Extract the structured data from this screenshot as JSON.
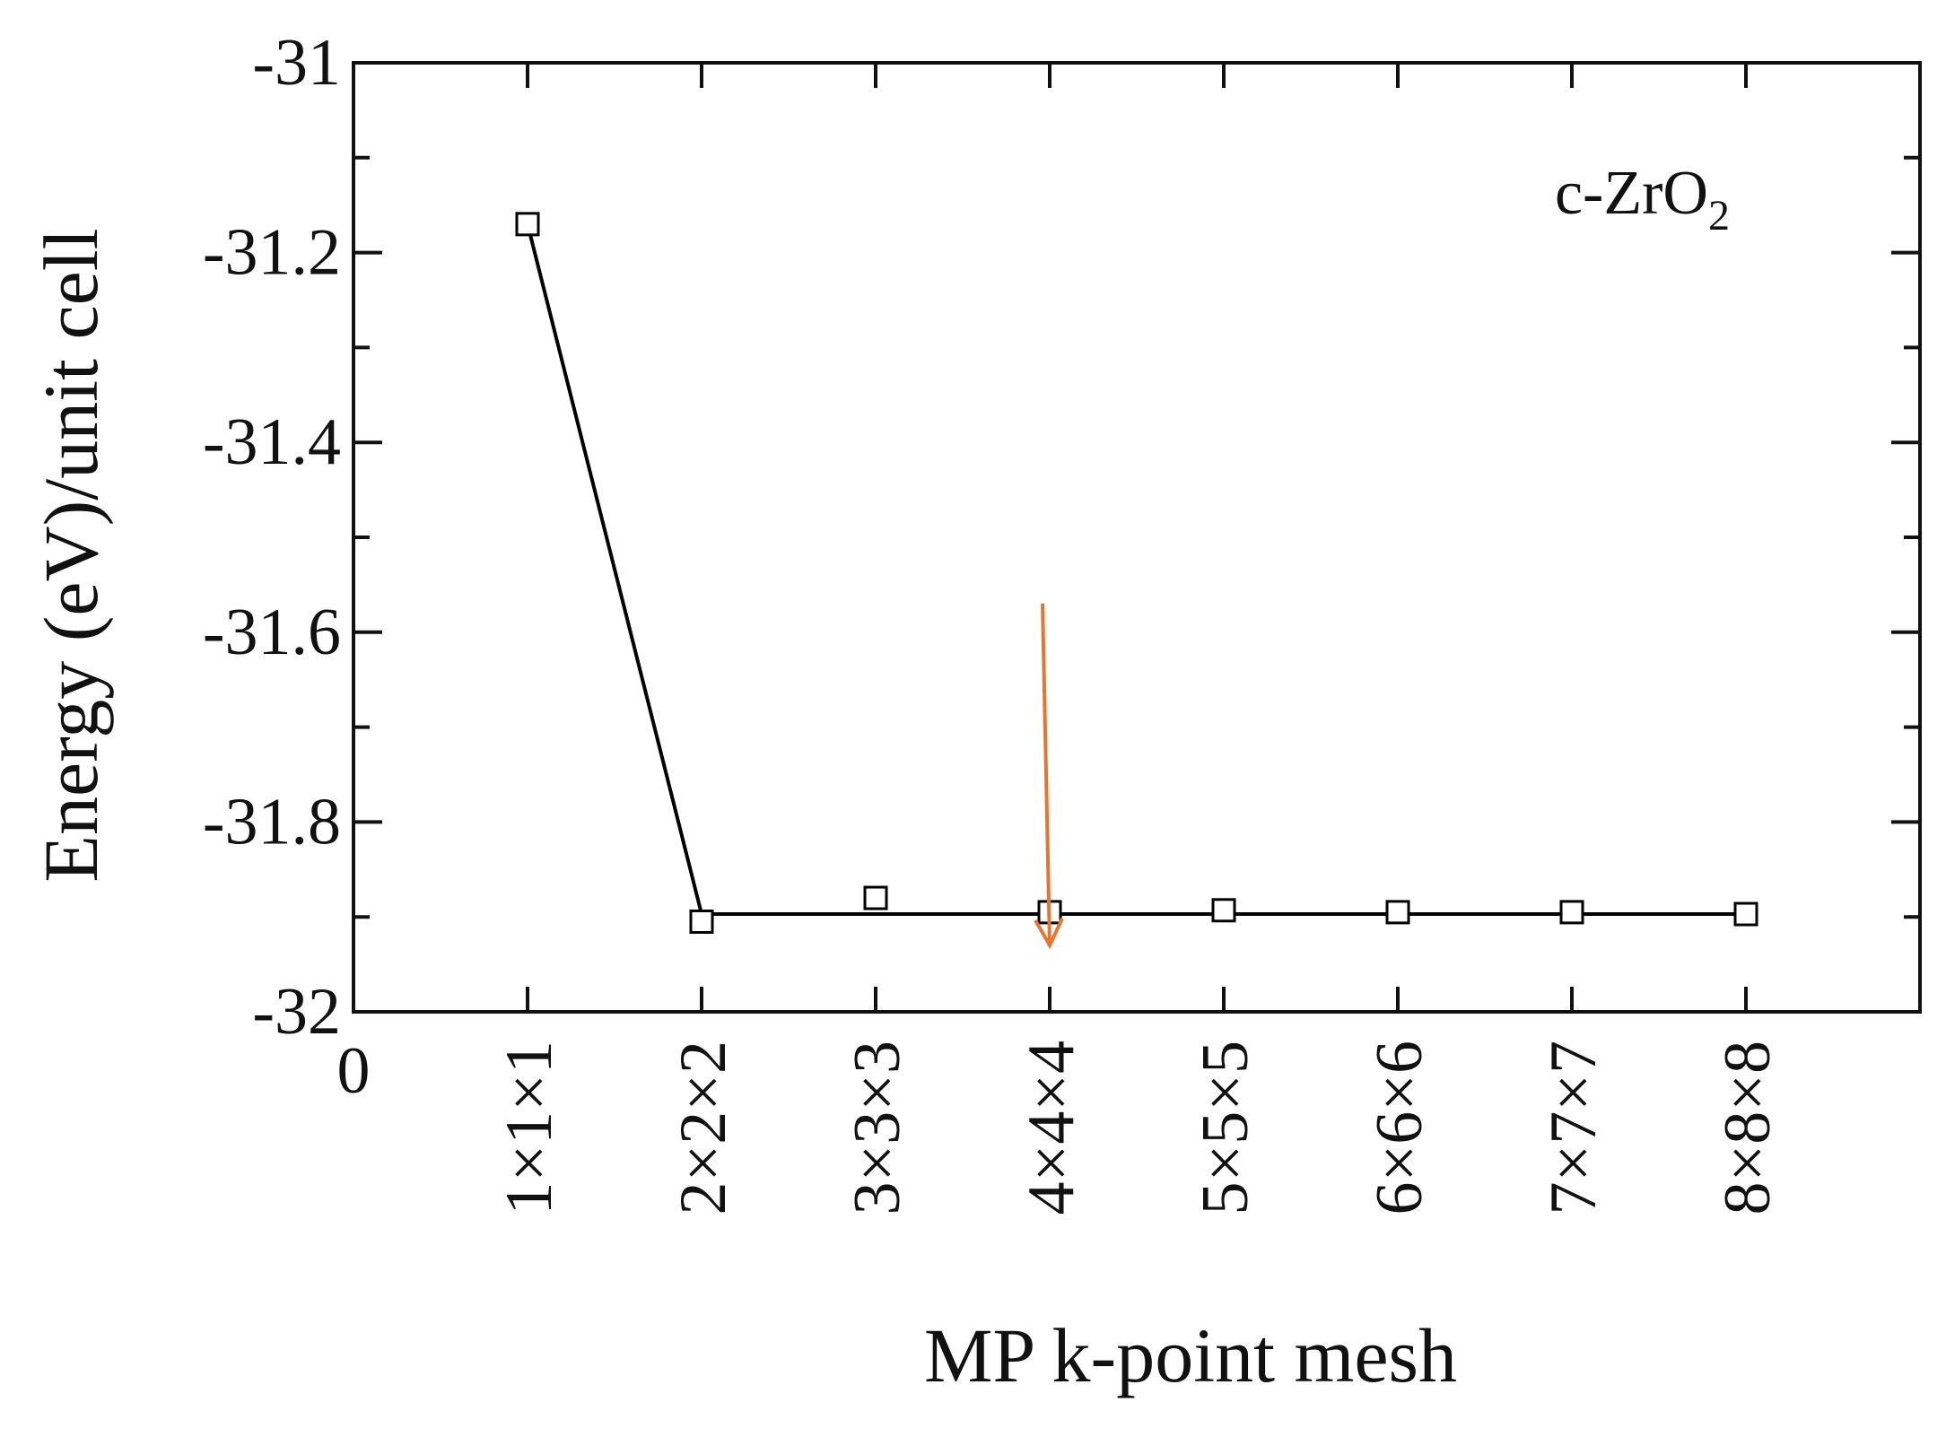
{
  "chart_data": {
    "type": "line",
    "title": "",
    "xlabel": "MP k-point mesh",
    "ylabel": "Energy (eV)/unit cell",
    "x_origin_label": "0",
    "categories": [
      "1×1×1",
      "2×2×2",
      "3×3×3",
      "4×4×4",
      "5×5×5",
      "6×6×6",
      "7×7×7",
      "8×8×8"
    ],
    "x_positions": [
      1,
      2,
      3,
      4,
      5,
      6,
      7,
      8
    ],
    "xlim": [
      0,
      9
    ],
    "ylim": [
      -32,
      -31
    ],
    "yticks": [
      -31,
      -31.2,
      -31.4,
      -31.6,
      -31.8,
      -32
    ],
    "ytick_labels": [
      "-31",
      "-31.2",
      "-31.4",
      "-31.6",
      "-31.8",
      "-32"
    ],
    "series": [
      {
        "markers": [
          -31.17,
          -31.905,
          -31.88,
          -31.895,
          -31.893,
          -31.895,
          -31.895,
          -31.897
        ],
        "line": [
          -31.17,
          -31.897,
          -31.897,
          -31.897,
          -31.897,
          -31.897,
          -31.897,
          -31.897
        ],
        "color": "#000000",
        "marker": "square-open"
      }
    ],
    "annotations": {
      "label": {
        "text": "c-ZrO",
        "subscript": "2",
        "position": "top-right"
      },
      "arrow": {
        "x": 4,
        "y_from": -31.57,
        "y_to": -31.93,
        "color": "#e9742f"
      }
    },
    "grid": false,
    "legend": "none"
  }
}
